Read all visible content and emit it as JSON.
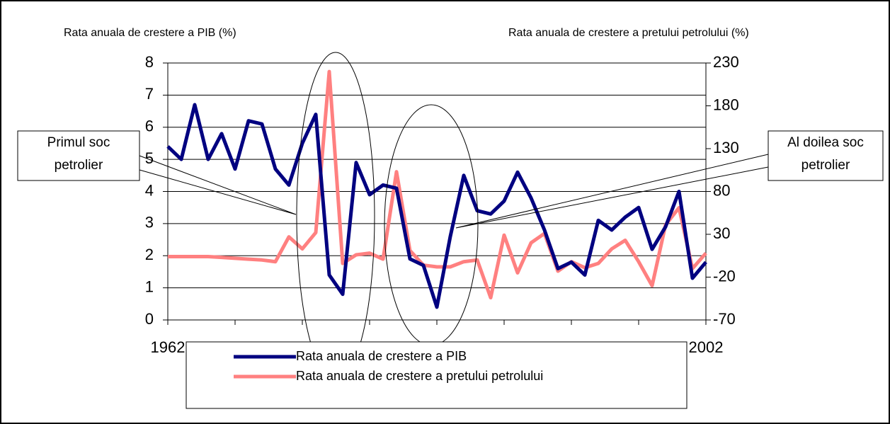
{
  "chart_data": {
    "type": "line",
    "y_label": "Rata anuala de crestere a PIB (%)",
    "y2_label": "Rata anuala de crestere a pretului petrolului (%)",
    "x": [
      1962,
      1963,
      1964,
      1965,
      1966,
      1967,
      1968,
      1969,
      1970,
      1971,
      1972,
      1973,
      1974,
      1975,
      1976,
      1977,
      1978,
      1979,
      1980,
      1981,
      1982,
      1983,
      1984,
      1985,
      1986,
      1987,
      1988,
      1989,
      1990,
      1991,
      1992,
      1993,
      1994,
      1995,
      1996,
      1997,
      1998,
      1999,
      2000,
      2001,
      2002
    ],
    "series": [
      {
        "name": "Rata anuala de crestere a PIB",
        "color": "#000080",
        "axis": "y",
        "values": [
          5.4,
          5.0,
          6.7,
          5.0,
          5.8,
          4.7,
          6.2,
          6.1,
          4.7,
          4.2,
          5.5,
          6.4,
          1.4,
          0.8,
          4.9,
          3.9,
          4.2,
          4.1,
          1.9,
          1.7,
          0.4,
          2.6,
          4.5,
          3.4,
          3.3,
          3.7,
          4.6,
          3.8,
          2.8,
          1.6,
          1.8,
          1.4,
          3.1,
          2.8,
          3.2,
          3.5,
          2.2,
          2.9,
          4.0,
          1.3,
          1.8
        ]
      },
      {
        "name": "Rata anuala de crestere a pretului petrolului",
        "color": "#ff8080",
        "axis": "y2",
        "values": [
          4,
          4,
          4,
          4,
          3,
          2,
          1,
          0,
          -2,
          27,
          13,
          32,
          220,
          -4,
          6,
          8,
          1,
          103,
          11,
          -6,
          -8,
          -8,
          -2,
          0,
          -44,
          29,
          -15,
          20,
          31,
          -13,
          -2,
          -9,
          -4,
          13,
          23,
          -2,
          -30,
          41,
          61,
          -10,
          8
        ]
      }
    ],
    "xlim": [
      1962,
      2002
    ],
    "xticks": [
      1962,
      1967,
      1972,
      1977,
      1982,
      1987,
      1992,
      1997,
      2002
    ],
    "ylim": [
      0,
      8
    ],
    "yticks": [
      0,
      1,
      2,
      3,
      4,
      5,
      6,
      7,
      8
    ],
    "y2lim": [
      -70,
      230
    ],
    "y2ticks": [
      -70,
      -20,
      30,
      80,
      130,
      180,
      230
    ],
    "grid": true,
    "legend": "bottom",
    "annotations": [
      {
        "lines": [
          "Primul soc",
          "petrolier"
        ]
      },
      {
        "lines": [
          "Al doilea soc",
          "petrolier"
        ]
      }
    ]
  }
}
